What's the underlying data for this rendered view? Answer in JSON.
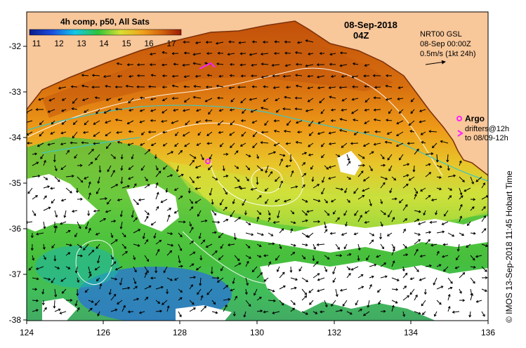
{
  "legend": {
    "title": "4h comp, p50, All Sats",
    "ticks": [
      "11",
      "12",
      "13",
      "14",
      "15",
      "16",
      "17"
    ]
  },
  "map": {
    "date": "08-Sep-2018",
    "time": "04Z",
    "current_info": [
      "NRT00 GSL",
      "08-Sep 00:00Z",
      "0.5m/s (1kt 24h)"
    ],
    "argo_label": "Argo",
    "drifters_label": [
      "drifters@12h",
      "to 08/09-12h"
    ],
    "x_ticks": [
      "124",
      "126",
      "128",
      "130",
      "132",
      "134",
      "136"
    ],
    "y_ticks": [
      "-32",
      "-33",
      "-34",
      "-35",
      "-36",
      "-37",
      "-38"
    ]
  },
  "credit": "© IMOS 13-Sep-2018 11:45 Hobart Time",
  "colors": {
    "land": "#f8c79a",
    "warm": "#c2500a",
    "orange": "#ee9a18",
    "yellow": "#e6e032",
    "green": "#3dbb3a",
    "teal": "#1fb5a5",
    "blue": "#2766d6",
    "marker": "#ff22ff"
  }
}
